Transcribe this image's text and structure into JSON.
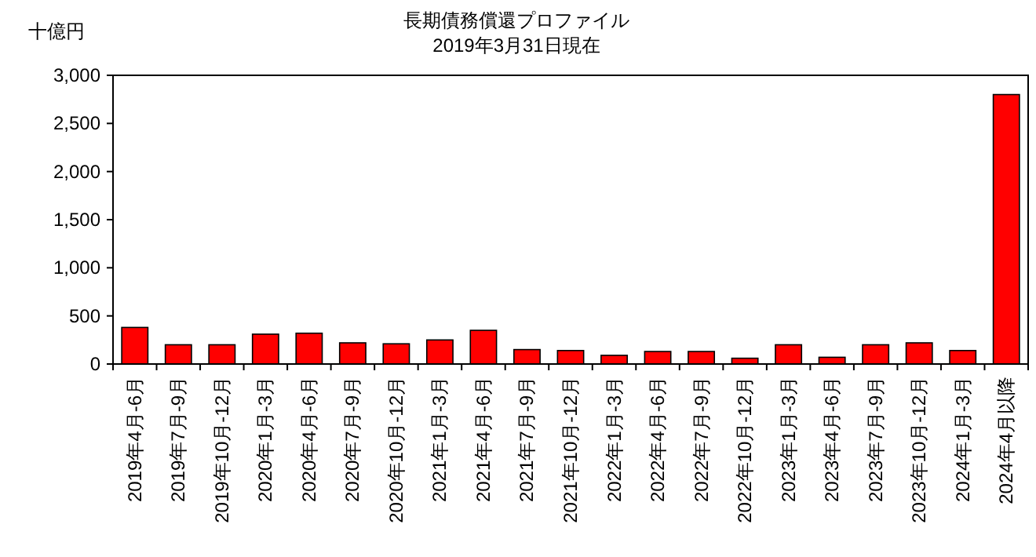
{
  "chart_data": {
    "type": "bar",
    "title": "長期債務償還プロファイル",
    "subtitle": "2019年3月31日現在",
    "ylabel": "十億円",
    "categories": [
      "2019年4月-6月",
      "2019年7月-9月",
      "2019年10月-12月",
      "2020年1月-3月",
      "2020年4月-6月",
      "2020年7月-9月",
      "2020年10月-12月",
      "2021年1月-3月",
      "2021年4月-6月",
      "2021年7月-9月",
      "2021年10月-12月",
      "2022年1月-3月",
      "2022年4月-6月",
      "2022年7月-9月",
      "2022年10月-12月",
      "2023年1月-3月",
      "2023年4月-6月",
      "2023年7月-9月",
      "2023年10月-12月",
      "2024年1月-3月",
      "2024年4月以降"
    ],
    "values": [
      380,
      200,
      200,
      310,
      320,
      220,
      210,
      250,
      350,
      150,
      140,
      90,
      130,
      130,
      60,
      200,
      70,
      200,
      220,
      140,
      2800
    ],
    "color": "#ff0000",
    "ylim": [
      0,
      3000
    ],
    "yticks": [
      {
        "value": 0,
        "label": "0"
      },
      {
        "value": 500,
        "label": "500"
      },
      {
        "value": 1000,
        "label": "1,000"
      },
      {
        "value": 1500,
        "label": "1,500"
      },
      {
        "value": 2000,
        "label": "2,000"
      },
      {
        "value": 2500,
        "label": "2,500"
      },
      {
        "value": 3000,
        "label": "3,000"
      }
    ]
  }
}
